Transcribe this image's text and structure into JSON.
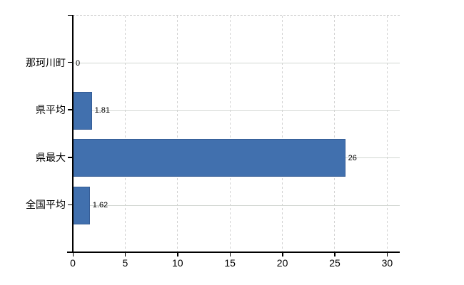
{
  "chart_data": {
    "type": "bar",
    "orientation": "horizontal",
    "title": "",
    "xlabel": "",
    "ylabel": "",
    "categories": [
      "那珂川町",
      "県平均",
      "県最大",
      "全国平均"
    ],
    "values": [
      0,
      1.81,
      26,
      1.62
    ],
    "value_labels": [
      "0",
      "1.81",
      "26",
      "1.62"
    ],
    "xticks": [
      0,
      5,
      10,
      15,
      20,
      25,
      30
    ],
    "xtick_labels": [
      "0",
      "5",
      "10",
      "15",
      "20",
      "25",
      "30"
    ],
    "xlim": [
      0,
      31.2
    ],
    "grid": true,
    "legend": false,
    "colors": {
      "bar": "#4170ae",
      "bar_border": "#345c95",
      "gridline": "#d2d2d2",
      "axis": "#000000",
      "text": "#000000",
      "background": "#ffffff"
    }
  }
}
